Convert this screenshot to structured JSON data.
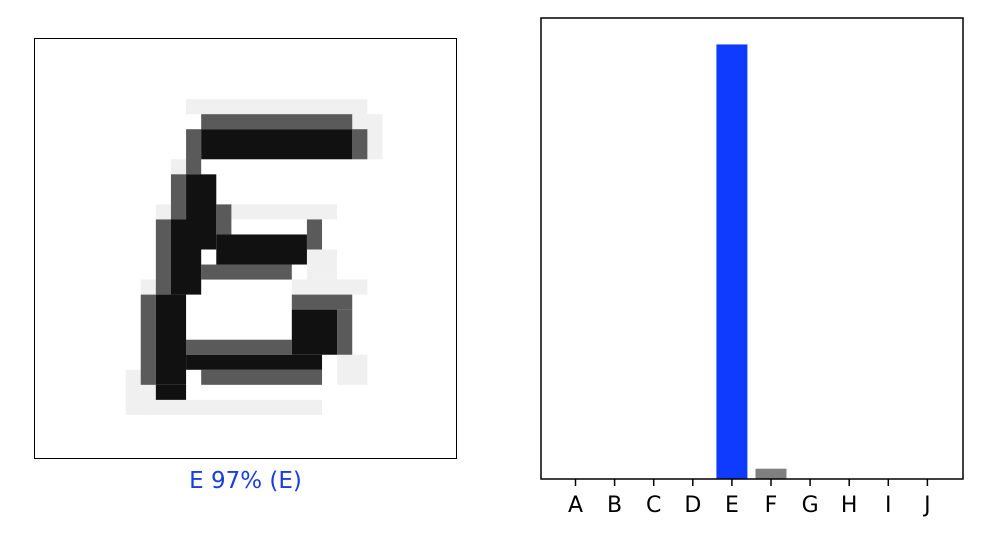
{
  "caption": {
    "text": "E 97% (E)",
    "color": "#1a3de0"
  },
  "colors": {
    "predicted_bar": "#0f3bff",
    "other_bar": "#808080",
    "axis": "#000000"
  },
  "chart_data": {
    "type": "bar",
    "categories": [
      "A",
      "B",
      "C",
      "D",
      "E",
      "F",
      "G",
      "H",
      "I",
      "J"
    ],
    "values": [
      0.0,
      0.0,
      0.0,
      0.0,
      0.97,
      0.023,
      0.0,
      0.0,
      0.0,
      0.0
    ],
    "highlight": "E",
    "title": "",
    "xlabel": "",
    "ylabel": "",
    "ylim": [
      0,
      1.0
    ],
    "yticks": "hidden",
    "grid": false
  }
}
